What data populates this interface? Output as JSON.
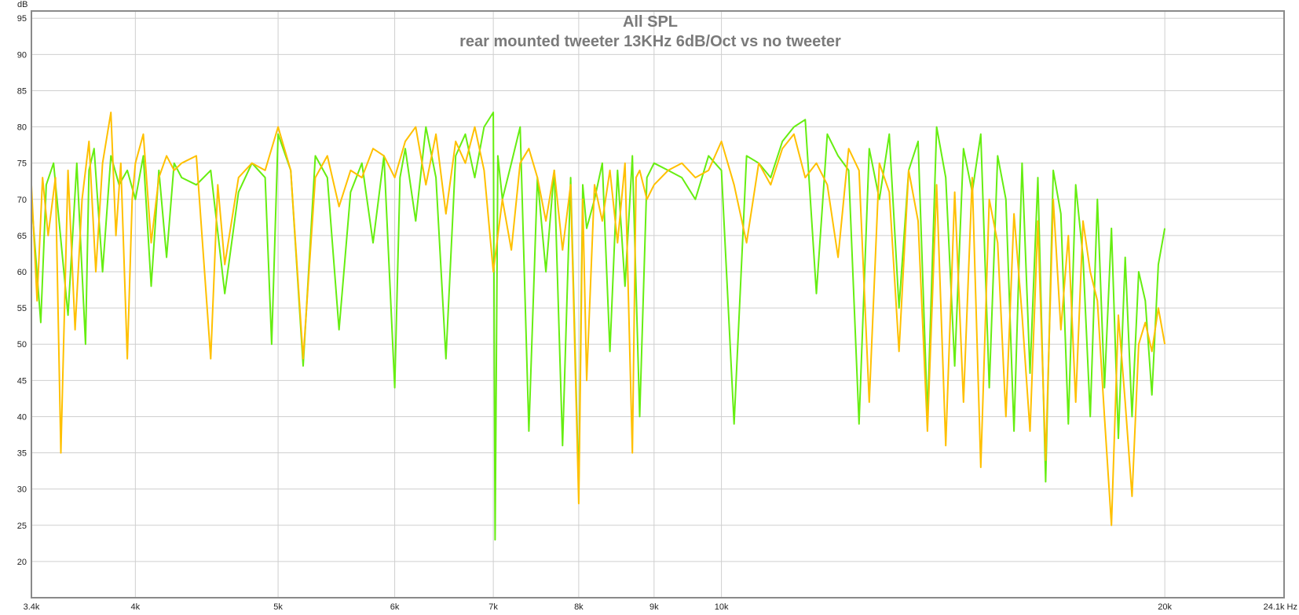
{
  "chart_data": {
    "type": "line",
    "title": "All SPL",
    "subtitle": "rear mounted tweeter 13KHz 6dB/Oct  vs no tweeter",
    "xlabel": "",
    "ylabel": "",
    "y_unit_label": "dB",
    "x_scale": "log",
    "xlim": [
      3400,
      24100
    ],
    "ylim": [
      15,
      96
    ],
    "grid": true,
    "x_ticks": [
      {
        "value": 3400,
        "label": "3.4k"
      },
      {
        "value": 4000,
        "label": "4k"
      },
      {
        "value": 5000,
        "label": "5k"
      },
      {
        "value": 6000,
        "label": "6k"
      },
      {
        "value": 7000,
        "label": "7k"
      },
      {
        "value": 8000,
        "label": "8k"
      },
      {
        "value": 9000,
        "label": "9k"
      },
      {
        "value": 10000,
        "label": "10k"
      },
      {
        "value": 20000,
        "label": "20k"
      },
      {
        "value": 24100,
        "label": "24.1k Hz"
      }
    ],
    "y_ticks": [
      {
        "value": 95,
        "label": "95"
      },
      {
        "value": 90,
        "label": "90"
      },
      {
        "value": 85,
        "label": "85"
      },
      {
        "value": 80,
        "label": "80"
      },
      {
        "value": 75,
        "label": "75"
      },
      {
        "value": 70,
        "label": "70"
      },
      {
        "value": 65,
        "label": "65"
      },
      {
        "value": 60,
        "label": "60"
      },
      {
        "value": 55,
        "label": "55"
      },
      {
        "value": 50,
        "label": "50"
      },
      {
        "value": 45,
        "label": "45"
      },
      {
        "value": 40,
        "label": "40"
      },
      {
        "value": 35,
        "label": "35"
      },
      {
        "value": 30,
        "label": "30"
      },
      {
        "value": 25,
        "label": "25"
      },
      {
        "value": 20,
        "label": "20"
      }
    ],
    "series": [
      {
        "color": "#66ee11",
        "x": [
          3400,
          3450,
          3480,
          3520,
          3600,
          3650,
          3700,
          3720,
          3750,
          3800,
          3850,
          3900,
          3950,
          4000,
          4050,
          4100,
          4150,
          4200,
          4250,
          4300,
          4400,
          4500,
          4600,
          4700,
          4800,
          4900,
          4950,
          5000,
          5100,
          5200,
          5300,
          5400,
          5500,
          5600,
          5700,
          5800,
          5900,
          6000,
          6050,
          6100,
          6200,
          6300,
          6400,
          6500,
          6600,
          6700,
          6800,
          6900,
          7000,
          7020,
          7050,
          7100,
          7200,
          7300,
          7400,
          7500,
          7600,
          7700,
          7800,
          7900,
          8000,
          8050,
          8100,
          8200,
          8300,
          8400,
          8500,
          8600,
          8700,
          8800,
          8900,
          9000,
          9200,
          9400,
          9600,
          9800,
          10000,
          10200,
          10400,
          10600,
          10800,
          11000,
          11200,
          11400,
          11600,
          11800,
          12000,
          12200,
          12400,
          12600,
          12800,
          13000,
          13200,
          13400,
          13600,
          13800,
          14000,
          14200,
          14400,
          14600,
          14800,
          15000,
          15200,
          15400,
          15600,
          15800,
          16000,
          16200,
          16400,
          16600,
          16800,
          17000,
          17200,
          17400,
          17600,
          17800,
          18000,
          18200,
          18400,
          18600,
          18800,
          19000,
          19200,
          19400,
          19600,
          19800,
          20000
        ],
        "values": [
          70,
          53,
          72,
          75,
          54,
          75,
          50,
          74,
          77,
          60,
          76,
          72,
          74,
          70,
          76,
          58,
          74,
          62,
          75,
          73,
          72,
          74,
          57,
          71,
          75,
          73,
          50,
          79,
          74,
          47,
          76,
          73,
          52,
          71,
          75,
          64,
          76,
          44,
          73,
          77,
          67,
          80,
          73,
          48,
          76,
          79,
          73,
          80,
          82,
          23,
          76,
          70,
          75,
          80,
          38,
          73,
          60,
          74,
          36,
          73,
          30,
          72,
          66,
          70,
          75,
          49,
          74,
          58,
          76,
          40,
          73,
          75,
          74,
          73,
          70,
          76,
          74,
          39,
          76,
          75,
          73,
          78,
          80,
          81,
          57,
          79,
          76,
          74,
          39,
          77,
          70,
          79,
          55,
          74,
          78,
          40,
          80,
          73,
          47,
          77,
          71,
          79,
          44,
          76,
          70,
          38,
          75,
          46,
          73,
          31,
          74,
          68,
          39,
          72,
          62,
          40,
          70,
          44,
          66,
          37,
          62,
          40,
          60,
          56,
          43,
          61,
          66
        ]
      },
      {
        "color": "#ffc000",
        "x": [
          3400,
          3430,
          3460,
          3490,
          3530,
          3560,
          3600,
          3640,
          3680,
          3720,
          3760,
          3800,
          3850,
          3880,
          3910,
          3950,
          3980,
          4000,
          4050,
          4100,
          4150,
          4200,
          4250,
          4300,
          4400,
          4500,
          4550,
          4600,
          4700,
          4800,
          4900,
          5000,
          5100,
          5200,
          5300,
          5400,
          5500,
          5600,
          5700,
          5800,
          5900,
          6000,
          6100,
          6200,
          6300,
          6400,
          6500,
          6600,
          6700,
          6800,
          6900,
          7000,
          7100,
          7200,
          7300,
          7400,
          7500,
          7600,
          7700,
          7800,
          7900,
          8000,
          8050,
          8100,
          8200,
          8300,
          8400,
          8500,
          8600,
          8700,
          8750,
          8800,
          8900,
          9000,
          9200,
          9400,
          9600,
          9800,
          10000,
          10200,
          10400,
          10600,
          10800,
          11000,
          11200,
          11400,
          11600,
          11800,
          12000,
          12200,
          12400,
          12600,
          12800,
          13000,
          13200,
          13400,
          13600,
          13800,
          14000,
          14200,
          14400,
          14600,
          14800,
          15000,
          15200,
          15400,
          15600,
          15800,
          16000,
          16200,
          16400,
          16600,
          16800,
          17000,
          17200,
          17400,
          17600,
          17800,
          18000,
          18200,
          18400,
          18600,
          18800,
          19000,
          19200,
          19400,
          19600,
          19800,
          20000
        ],
        "values": [
          72,
          56,
          73,
          65,
          73,
          35,
          74,
          52,
          70,
          78,
          60,
          75,
          82,
          65,
          75,
          48,
          70,
          75,
          79,
          64,
          73,
          76,
          74,
          75,
          76,
          48,
          72,
          61,
          73,
          75,
          74,
          80,
          74,
          48,
          73,
          76,
          69,
          74,
          73,
          77,
          76,
          73,
          78,
          80,
          72,
          79,
          68,
          78,
          75,
          80,
          74,
          60,
          70,
          63,
          75,
          77,
          73,
          67,
          74,
          63,
          72,
          28,
          70,
          45,
          72,
          67,
          74,
          64,
          75,
          35,
          73,
          74,
          70,
          72,
          74,
          75,
          73,
          74,
          78,
          72,
          64,
          75,
          72,
          77,
          79,
          73,
          75,
          72,
          62,
          77,
          74,
          42,
          75,
          71,
          49,
          74,
          67,
          38,
          72,
          36,
          71,
          42,
          73,
          33,
          70,
          64,
          40,
          68,
          54,
          38,
          67,
          34,
          70,
          52,
          65,
          42,
          67,
          60,
          56,
          40,
          25,
          54,
          42,
          29,
          50,
          53,
          49,
          55,
          50
        ]
      }
    ]
  }
}
